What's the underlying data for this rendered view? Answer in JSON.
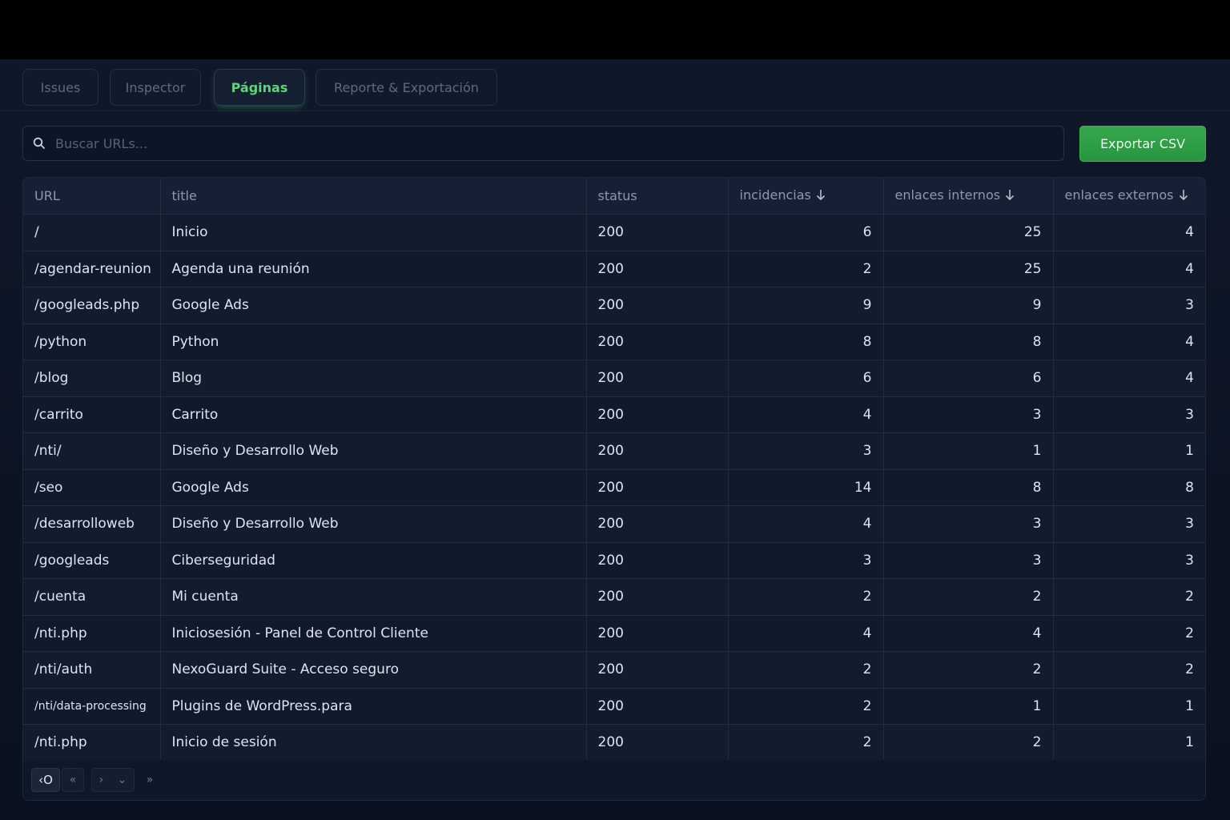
{
  "tabs": [
    {
      "label": "Issues",
      "active": false
    },
    {
      "label": "Inspector",
      "active": false
    },
    {
      "label": "Páginas",
      "active": true
    },
    {
      "label": "Reporte & Exportación",
      "active": false
    }
  ],
  "search": {
    "placeholder": "Buscar URLs...",
    "value": "",
    "icon": "search-icon"
  },
  "export_button": {
    "label": "Exportar CSV"
  },
  "table": {
    "columns": [
      "URL",
      "title",
      "status",
      "incidencias",
      "enlaces internos",
      "enlaces externos"
    ],
    "rows": [
      [
        "/",
        "Inicio",
        "200",
        "6",
        "25",
        "4"
      ],
      [
        "/agendar-reunion",
        "Agenda una reunión",
        "200",
        "2",
        "25",
        "4"
      ],
      [
        "/googleads.php",
        "Google Ads",
        "200",
        "9",
        "9",
        "3"
      ],
      [
        "/python",
        "Python",
        "200",
        "8",
        "8",
        "4"
      ],
      [
        "/blog",
        "Blog",
        "200",
        "6",
        "6",
        "4"
      ],
      [
        "/carrito",
        "Carrito",
        "200",
        "4",
        "3",
        "3"
      ],
      [
        "/nti/",
        "Diseño y Desarrollo Web",
        "200",
        "3",
        "1",
        "1"
      ],
      [
        "/seo",
        "Google Ads",
        "200",
        "14",
        "8",
        "8"
      ],
      [
        "/desarrolloweb",
        "Diseño y Desarrollo Web",
        "200",
        "4",
        "3",
        "3"
      ],
      [
        "/googleads",
        "Ciberseguridad",
        "200",
        "3",
        "3",
        "3"
      ],
      [
        "/cuenta",
        "Mi cuenta",
        "200",
        "2",
        "2",
        "2"
      ],
      [
        "/nti.php",
        "Iniciosesión - Panel de Control Cliente",
        "200",
        "4",
        "4",
        "2"
      ],
      [
        "/nti/auth",
        "NexoGuard Suite - Acceso seguro",
        "200",
        "2",
        "2",
        "2"
      ],
      [
        "/nti/data-processing",
        "Plugins de WordPress.para",
        "200",
        "2",
        "1",
        "1"
      ],
      [
        "/nti.php",
        "Inicio de sesión",
        "200",
        "2",
        "2",
        "1"
      ]
    ]
  },
  "pager": {
    "first_label": "‹O",
    "prev_label": "«",
    "next_label": "›",
    "dropdown_label": "⌄",
    "last_label": "»"
  }
}
